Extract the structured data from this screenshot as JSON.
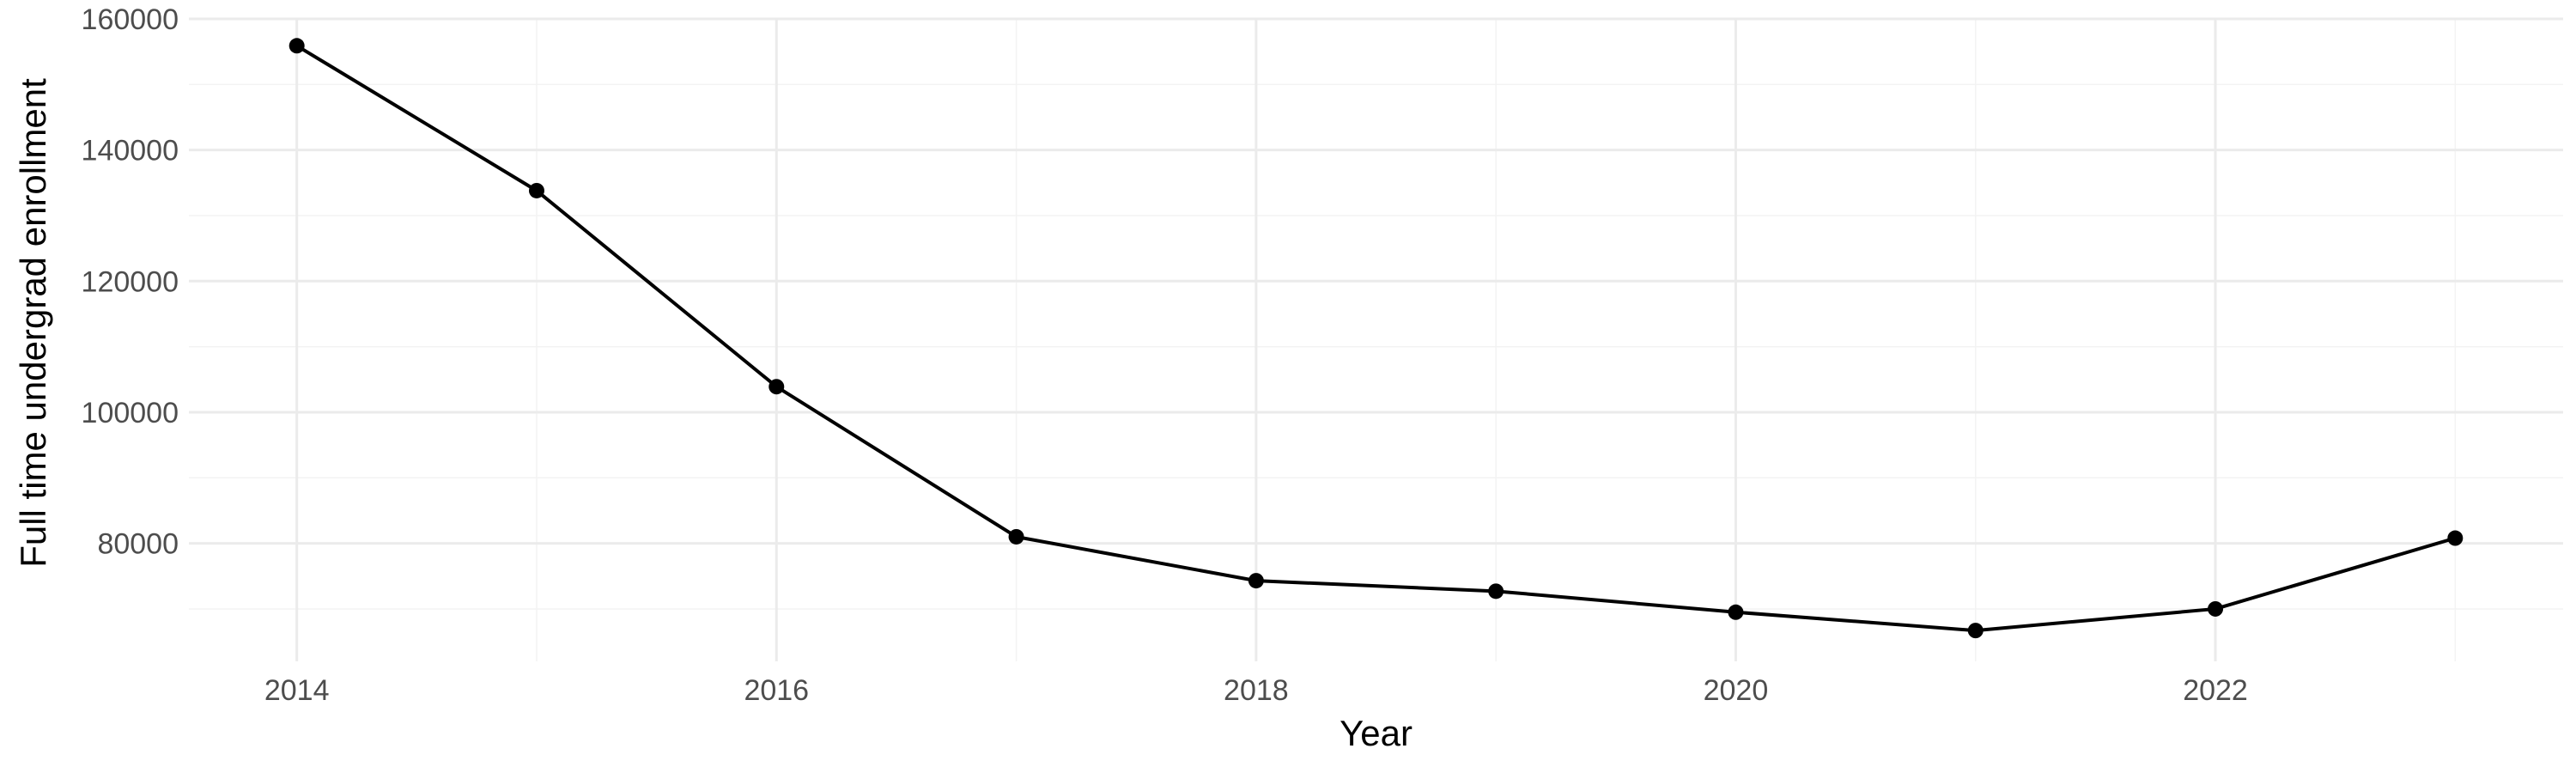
{
  "chart_data": {
    "type": "line",
    "title": "",
    "xlabel": "Year",
    "ylabel": "Full time undergrad enrollment",
    "x": [
      2014,
      2015,
      2016,
      2017,
      2018,
      2019,
      2020,
      2021,
      2022,
      2023
    ],
    "series": [
      {
        "values": [
          155900,
          133800,
          103900,
          81000,
          74300,
          72700,
          69500,
          66700,
          70000,
          80800
        ]
      }
    ],
    "xlim": [
      2013.55,
      2023.45
    ],
    "ylim": [
      62000,
      160000
    ],
    "x_ticks": [
      2014,
      2016,
      2018,
      2020,
      2022
    ],
    "x_tick_labels": [
      "2014",
      "2016",
      "2018",
      "2020",
      "2022"
    ],
    "y_ticks": [
      80000,
      100000,
      120000,
      140000,
      160000
    ],
    "y_tick_labels": [
      "80000",
      "100000",
      "120000",
      "140000",
      "160000"
    ],
    "grid": true,
    "legend": "none",
    "colors": {
      "line": "#000000",
      "point": "#000000",
      "grid_major": "#ebebeb",
      "grid_minor": "#f3f3f3",
      "tick_text": "#4d4d4d",
      "background": "#ffffff"
    }
  }
}
